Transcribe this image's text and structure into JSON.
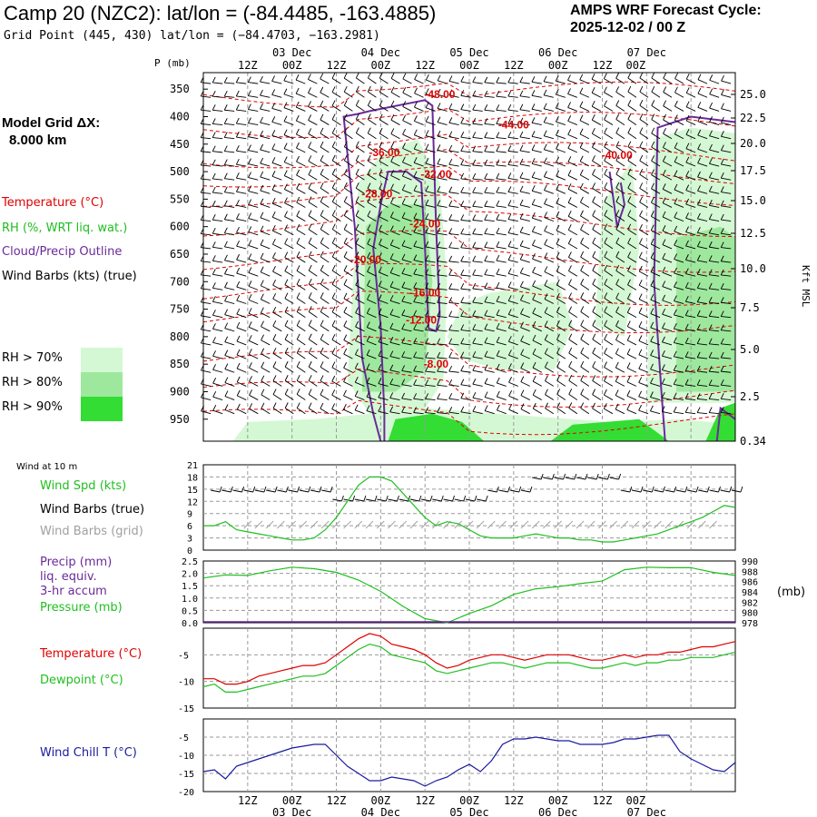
{
  "header": {
    "title": "Camp 20 (NZC2):  lat/lon = (-84.4485, -163.4885)",
    "subtitle": "Grid Point (445, 430) lat/lon = (−84.4703, −163.2981)",
    "cycle_line1": "AMPS WRF Forecast Cycle:",
    "cycle_line2": "2025-12-02 / 00  Z",
    "model_grid_line1": "Model Grid ΔX:",
    "model_grid_line2": "8.000 km"
  },
  "legend": {
    "temperature": "Temperature (°C)",
    "rh": "RH (%, WRT liq. wat.)",
    "cloud": "Cloud/Precip Outline",
    "wind_barbs": "Wind Barbs (kts) (true)",
    "rh70": "RH > 70%",
    "rh80": "RH > 80%",
    "rh90": "RH > 90%",
    "wind10m": "Wind at 10 m",
    "wind_spd": "Wind Spd (kts)",
    "wind_barbs_true": "Wind Barbs (true)",
    "wind_barbs_grid": "Wind Barbs (grid)",
    "precip1": "Precip (mm)",
    "precip2": "liq. equiv.",
    "precip3": "3-hr accum",
    "pressure": "Pressure (mb)",
    "temp2": "Temperature (°C)",
    "dewpoint": "Dewpoint (°C)",
    "windchill": "Wind Chill T (°C)",
    "p_axis": "P (mb)",
    "kft": "Kft MSL",
    "mb_unit": "(mb)"
  },
  "colors": {
    "temp": "#e00000",
    "rh": "#1fbf1f",
    "cloud": "#6a2a9a",
    "grid_barb": "#a0a0a0",
    "windchill": "#1a1aa0",
    "rh70": "#d4f8d4",
    "rh80": "#9ee89e",
    "rh90": "#33dd33"
  },
  "chart_data": [
    {
      "type": "heatmap",
      "title": "Vertical time section",
      "time_hours": [
        0,
        144
      ],
      "time_ticks_top": [
        "12Z",
        "00Z",
        "12Z",
        "00Z",
        "12Z",
        "00Z",
        "12Z",
        "00Z",
        "12Z",
        "00Z"
      ],
      "date_ticks_top": [
        "03 Dec",
        "04 Dec",
        "05 Dec",
        "06 Dec",
        "07 Dec"
      ],
      "pressure_levels": [
        350,
        400,
        450,
        500,
        550,
        600,
        650,
        700,
        750,
        800,
        850,
        900,
        950
      ],
      "height_ticks_kft": [
        "25.0",
        "22.5",
        "20.0",
        "17.5",
        "15.0",
        "12.5",
        "10.0",
        "7.5",
        "5.0",
        "2.5",
        "0.34"
      ],
      "temperature_contour_labels": [
        {
          "label": "-48.00",
          "t": 64,
          "p": 360
        },
        {
          "label": "-44.00",
          "t": 84,
          "p": 415
        },
        {
          "label": "-40.00",
          "t": 112,
          "p": 470
        },
        {
          "label": "-36.00",
          "t": 49,
          "p": 465
        },
        {
          "label": "-32.00",
          "t": 63,
          "p": 505
        },
        {
          "label": "-28.00",
          "t": 47,
          "p": 540
        },
        {
          "label": "-24.00",
          "t": 60,
          "p": 595
        },
        {
          "label": "-20.00",
          "t": 44,
          "p": 660
        },
        {
          "label": "-16.00",
          "t": 60,
          "p": 720
        },
        {
          "label": "-12.00",
          "t": 59,
          "p": 770
        },
        {
          "label": "-8.00",
          "t": 63,
          "p": 850
        }
      ]
    },
    {
      "type": "line",
      "title": "Wind at 10 m",
      "ylabel": "Wind Spd (kts)",
      "ylim": [
        0,
        21
      ],
      "yticks": [
        "0",
        "3",
        "6",
        "9",
        "12",
        "15",
        "18",
        "21"
      ],
      "x_hours": [
        0,
        3,
        6,
        9,
        12,
        15,
        18,
        21,
        24,
        27,
        30,
        33,
        36,
        39,
        42,
        45,
        48,
        51,
        54,
        57,
        60,
        63,
        66,
        69,
        72,
        75,
        78,
        81,
        84,
        87,
        90,
        93,
        96,
        99,
        102,
        105,
        108,
        111,
        114,
        117,
        120,
        123,
        126,
        129,
        132,
        135,
        138,
        141,
        144
      ],
      "series": [
        {
          "name": "Wind Spd",
          "values": [
            6,
            6,
            7,
            5,
            4.5,
            4,
            3.5,
            3,
            2.5,
            2.5,
            3,
            5,
            8,
            12,
            16,
            18,
            18,
            17,
            14,
            11,
            8,
            6,
            7,
            6.5,
            5,
            3.5,
            3,
            3,
            3,
            3.5,
            4,
            3.5,
            3,
            3,
            2.5,
            2.5,
            2,
            2,
            2.5,
            3,
            3.5,
            4,
            5,
            6,
            7,
            8,
            9.5,
            11,
            10.5
          ]
        }
      ]
    },
    {
      "type": "line",
      "title": "Precip / Pressure",
      "ylabel": "Precip (mm)",
      "ylim": [
        0,
        2.5
      ],
      "yticks": [
        "0.0",
        "0.5",
        "1.0",
        "1.5",
        "2.0",
        "2.5"
      ],
      "y2ticks": [
        "978",
        "980",
        "982",
        "984",
        "986",
        "988",
        "990"
      ],
      "y2lim": [
        978,
        990
      ],
      "x_hours": [
        0,
        6,
        12,
        18,
        24,
        30,
        36,
        42,
        48,
        54,
        60,
        66,
        72,
        78,
        84,
        90,
        96,
        102,
        108,
        114,
        120,
        126,
        132,
        138,
        144
      ],
      "series": [
        {
          "name": "Pressure",
          "axis": "right",
          "values": [
            986.7,
            987.3,
            987.2,
            988.1,
            988.8,
            988.5,
            987.8,
            986.3,
            984.1,
            981.2,
            978.8,
            978.0,
            979.8,
            981.3,
            983.5,
            984.6,
            985.0,
            985.6,
            986.1,
            988.3,
            988.8,
            988.7,
            988.7,
            987.8,
            987.2
          ]
        }
      ]
    },
    {
      "type": "line",
      "title": "Temperature / Dewpoint",
      "ylim": [
        -15,
        0
      ],
      "yticks": [
        "-5",
        "-10",
        "-15"
      ],
      "x_hours": [
        0,
        3,
        6,
        9,
        12,
        15,
        18,
        21,
        24,
        27,
        30,
        33,
        36,
        39,
        42,
        45,
        48,
        51,
        54,
        57,
        60,
        63,
        66,
        69,
        72,
        75,
        78,
        81,
        84,
        87,
        90,
        93,
        96,
        99,
        102,
        105,
        108,
        111,
        114,
        117,
        120,
        123,
        126,
        129,
        132,
        135,
        138,
        141,
        144
      ],
      "series": [
        {
          "name": "Temperature",
          "values": [
            -9.5,
            -9.5,
            -10.5,
            -10.5,
            -10,
            -9,
            -8.5,
            -8,
            -7.5,
            -7,
            -7,
            -6.5,
            -5,
            -3.5,
            -2,
            -1,
            -1.5,
            -3,
            -3.5,
            -4,
            -5,
            -6.5,
            -7.5,
            -7,
            -6,
            -5.5,
            -5,
            -5,
            -5.5,
            -6,
            -5.5,
            -5,
            -5,
            -5,
            -5.5,
            -6,
            -6,
            -5.5,
            -5,
            -5.5,
            -5,
            -5,
            -4.5,
            -4.5,
            -4,
            -3.5,
            -3.5,
            -3,
            -2.5
          ]
        },
        {
          "name": "Dewpoint",
          "values": [
            -11,
            -10.5,
            -12,
            -12,
            -11.5,
            -11,
            -10.5,
            -10,
            -9.5,
            -9,
            -9,
            -8.5,
            -7,
            -5.5,
            -4,
            -3,
            -3.5,
            -5,
            -5.5,
            -6,
            -6.5,
            -8,
            -8.5,
            -8,
            -7.5,
            -7,
            -6.5,
            -6.5,
            -7,
            -7.5,
            -7,
            -6.5,
            -6.5,
            -6.5,
            -7,
            -7.5,
            -7.5,
            -7,
            -6.5,
            -7,
            -6.5,
            -6.5,
            -6,
            -6,
            -5.5,
            -5.5,
            -5.5,
            -5,
            -4.5
          ]
        }
      ]
    },
    {
      "type": "line",
      "title": "Wind Chill",
      "ylim": [
        -20,
        0
      ],
      "yticks": [
        "-5",
        "-10",
        "-15",
        "-20"
      ],
      "x_hours": [
        0,
        3,
        6,
        9,
        12,
        15,
        18,
        21,
        24,
        27,
        30,
        33,
        36,
        39,
        42,
        45,
        48,
        51,
        54,
        57,
        60,
        63,
        66,
        69,
        72,
        75,
        78,
        81,
        84,
        87,
        90,
        93,
        96,
        99,
        102,
        105,
        108,
        111,
        114,
        117,
        120,
        123,
        126,
        129,
        132,
        135,
        138,
        141,
        144
      ],
      "series": [
        {
          "name": "Wind Chill T",
          "values": [
            -14.5,
            -14,
            -16.5,
            -13,
            -12,
            -11,
            -10,
            -9,
            -8,
            -7.5,
            -7,
            -7,
            -10,
            -13,
            -15,
            -17,
            -17,
            -16,
            -16.5,
            -17,
            -18.5,
            -17,
            -16,
            -14,
            -12.5,
            -14.5,
            -11.5,
            -7,
            -5.5,
            -5.5,
            -5,
            -5.5,
            -6,
            -6,
            -7,
            -7,
            -7,
            -6.5,
            -5.5,
            -5.5,
            -5,
            -4.5,
            -4.5,
            -9,
            -11,
            -12.5,
            -14,
            -14.5,
            -12
          ]
        }
      ]
    }
  ],
  "bottom_axis": {
    "time_ticks": [
      "12Z",
      "00Z",
      "12Z",
      "00Z",
      "12Z",
      "00Z",
      "12Z",
      "00Z",
      "12Z",
      "00Z"
    ],
    "date_ticks": [
      "03 Dec",
      "04 Dec",
      "05 Dec",
      "06 Dec",
      "07 Dec"
    ]
  }
}
